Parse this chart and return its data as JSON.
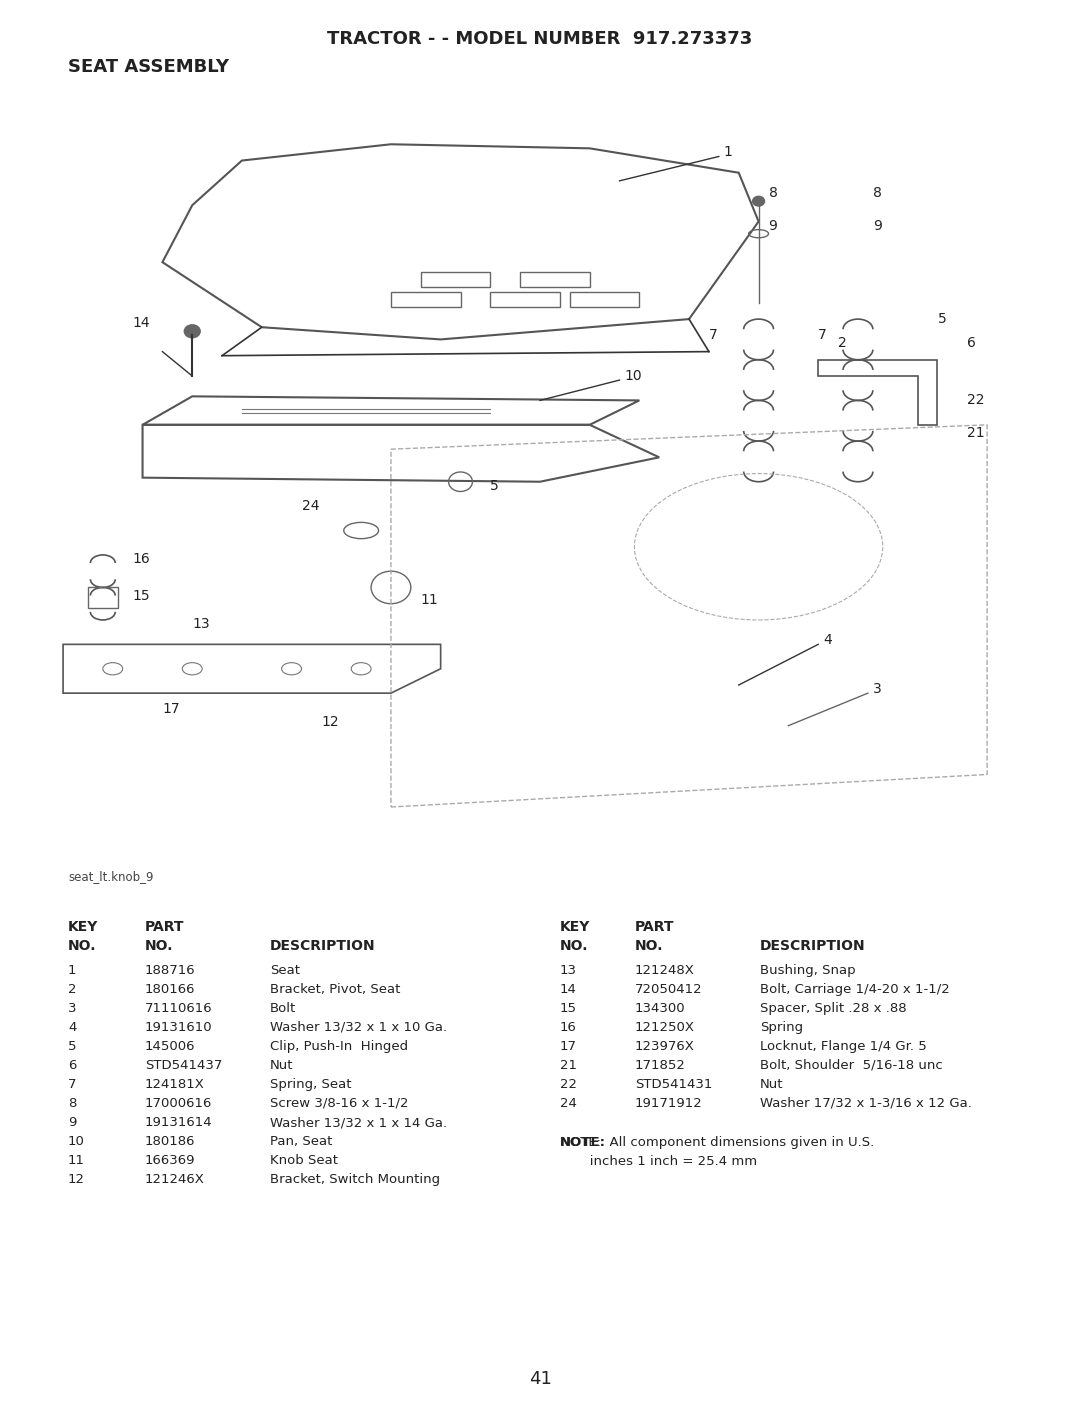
{
  "title": "TRACTOR - - MODEL NUMBER  917.273373",
  "subtitle": "SEAT ASSEMBLY",
  "image_caption": "seat_lt.knob_9",
  "page_number": "41",
  "background_color": "#ffffff",
  "text_color": "#333333",
  "table_left": {
    "header_row1": [
      "KEY",
      "PART",
      ""
    ],
    "header_row2": [
      "NO.",
      "NO.",
      "DESCRIPTION"
    ],
    "rows": [
      [
        "1",
        "188716",
        "Seat"
      ],
      [
        "2",
        "180166",
        "Bracket, Pivot, Seat"
      ],
      [
        "3",
        "71110616",
        "Bolt"
      ],
      [
        "4",
        "19131610",
        "Washer 13/32 x 1 x 10 Ga."
      ],
      [
        "5",
        "145006",
        "Clip, Push-In  Hinged"
      ],
      [
        "6",
        "STD541437",
        "Nut"
      ],
      [
        "7",
        "124181X",
        "Spring, Seat"
      ],
      [
        "8",
        "17000616",
        "Screw 3/8-16 x 1-1/2"
      ],
      [
        "9",
        "19131614",
        "Washer 13/32 x 1 x 14 Ga."
      ],
      [
        "10",
        "180186",
        "Pan, Seat"
      ],
      [
        "11",
        "166369",
        "Knob Seat"
      ],
      [
        "12",
        "121246X",
        "Bracket, Switch Mounting"
      ]
    ]
  },
  "table_right": {
    "header_row1": [
      "KEY",
      "PART",
      ""
    ],
    "header_row2": [
      "NO.",
      "NO.",
      "DESCRIPTION"
    ],
    "rows": [
      [
        "13",
        "121248X",
        "Bushing, Snap"
      ],
      [
        "14",
        "72050412",
        "Bolt, Carriage 1/4-20 x 1-1/2"
      ],
      [
        "15",
        "134300",
        "Spacer, Split .28 x .88"
      ],
      [
        "16",
        "121250X",
        "Spring"
      ],
      [
        "17",
        "123976X",
        "Locknut, Flange 1/4 Gr. 5"
      ],
      [
        "21",
        "171852",
        "Bolt, Shoulder  5/16-18 unc"
      ],
      [
        "22",
        "STD541431",
        "Nut"
      ],
      [
        "24",
        "19171912",
        "Washer 17/32 x 1-3/16 x 12 Ga."
      ]
    ]
  },
  "note": "NOTE:  All component dimensions given in U.S.\n       inches 1 inch = 25.4 mm"
}
